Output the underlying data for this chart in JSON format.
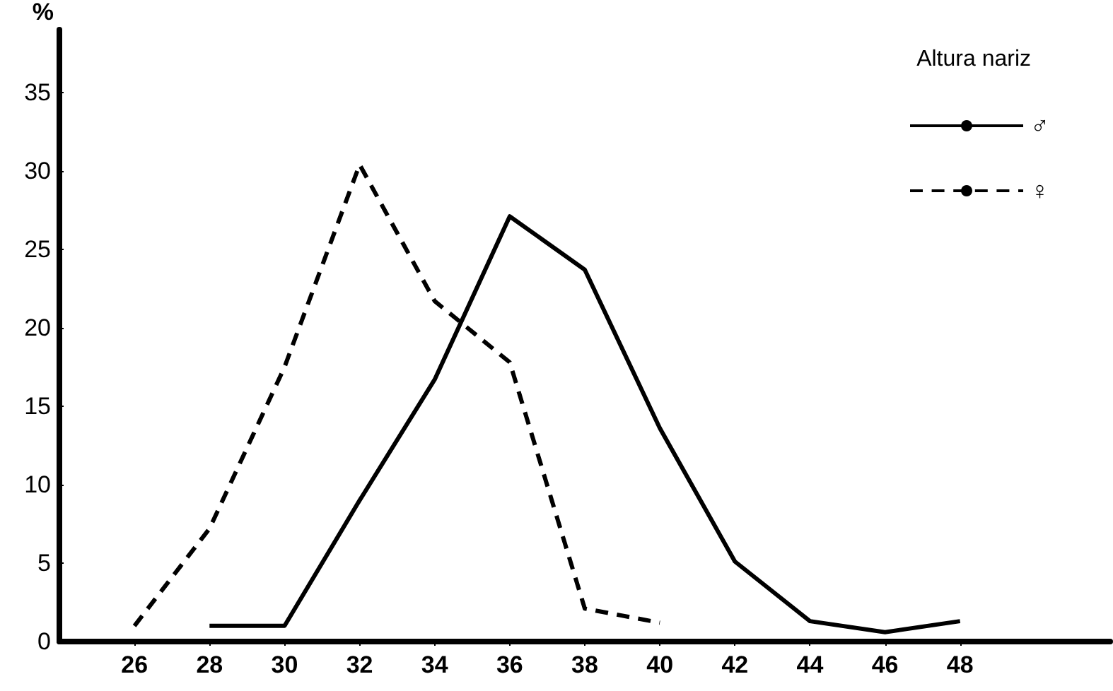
{
  "chart_data": {
    "type": "line",
    "ylabel": "%",
    "legend_title": "Altura nariz",
    "series": [
      {
        "name": "♂",
        "color": "#000000",
        "line_style": "solid",
        "x": [
          28,
          30,
          32,
          34,
          36,
          38,
          40,
          42,
          44,
          46,
          48
        ],
        "values": [
          1,
          1,
          9,
          16.7,
          27.1,
          23.7,
          13.6,
          5.1,
          1.3,
          0.6,
          1.3
        ]
      },
      {
        "name": "♀",
        "color": "#000000",
        "line_style": "dashed",
        "x": [
          26,
          28,
          30,
          32,
          34,
          36,
          38,
          40
        ],
        "values": [
          1,
          7.2,
          17.5,
          30.4,
          21.7,
          17.8,
          2.1,
          1.2
        ]
      }
    ],
    "xlim": [
      24,
      52
    ],
    "xticks": [
      26,
      28,
      30,
      32,
      34,
      36,
      38,
      40,
      42,
      44,
      46,
      48
    ],
    "ylim": [
      0,
      39
    ],
    "yticks": [
      0,
      5,
      10,
      15,
      20,
      25,
      30,
      35
    ],
    "grid": false,
    "legend": "top right",
    "marker": "none"
  }
}
